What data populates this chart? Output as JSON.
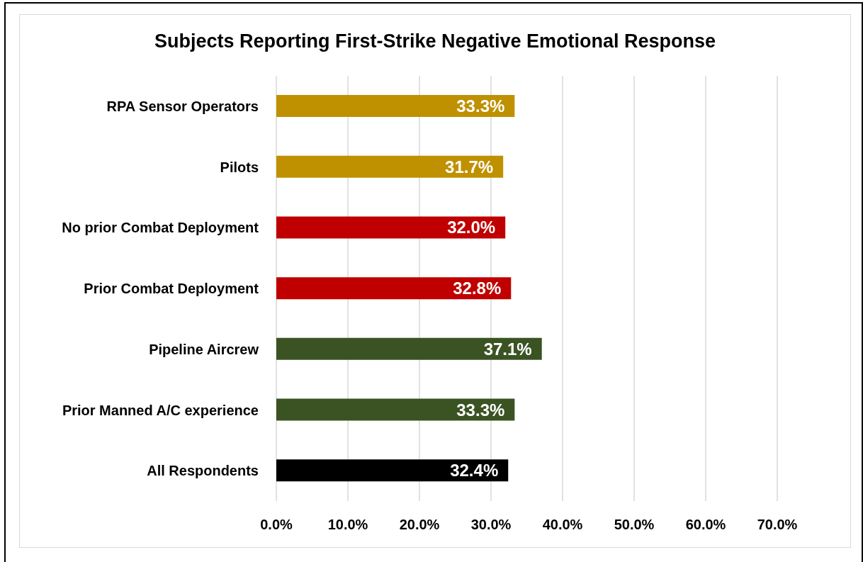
{
  "chart_data": {
    "type": "bar",
    "orientation": "horizontal",
    "title": "Subjects Reporting First-Strike Negative Emotional Response",
    "categories": [
      "RPA Sensor Operators",
      "Pilots",
      "No prior Combat Deployment",
      "Prior Combat Deployment",
      "Pipeline Aircrew",
      "Prior Manned A/C experience",
      "All Respondents"
    ],
    "values": [
      33.3,
      31.7,
      32.0,
      32.8,
      37.1,
      33.3,
      32.4
    ],
    "colors": [
      "#bf9000",
      "#bf9000",
      "#c00000",
      "#c00000",
      "#3b5323",
      "#3b5323",
      "#000000"
    ],
    "value_labels": [
      "33.3%",
      "31.7%",
      "32.0%",
      "32.8%",
      "37.1%",
      "33.3%",
      "32.4%"
    ],
    "xlim": [
      0,
      70
    ],
    "xticks": [
      {
        "value": 0,
        "label": "0.0%"
      },
      {
        "value": 10,
        "label": "10.0%"
      },
      {
        "value": 20,
        "label": "20.0%"
      },
      {
        "value": 30,
        "label": "30.0%"
      },
      {
        "value": 40,
        "label": "40.0%"
      },
      {
        "value": 50,
        "label": "50.0%"
      },
      {
        "value": 60,
        "label": "60.0%"
      },
      {
        "value": 70,
        "label": "70.0%"
      }
    ],
    "grid": "x"
  }
}
